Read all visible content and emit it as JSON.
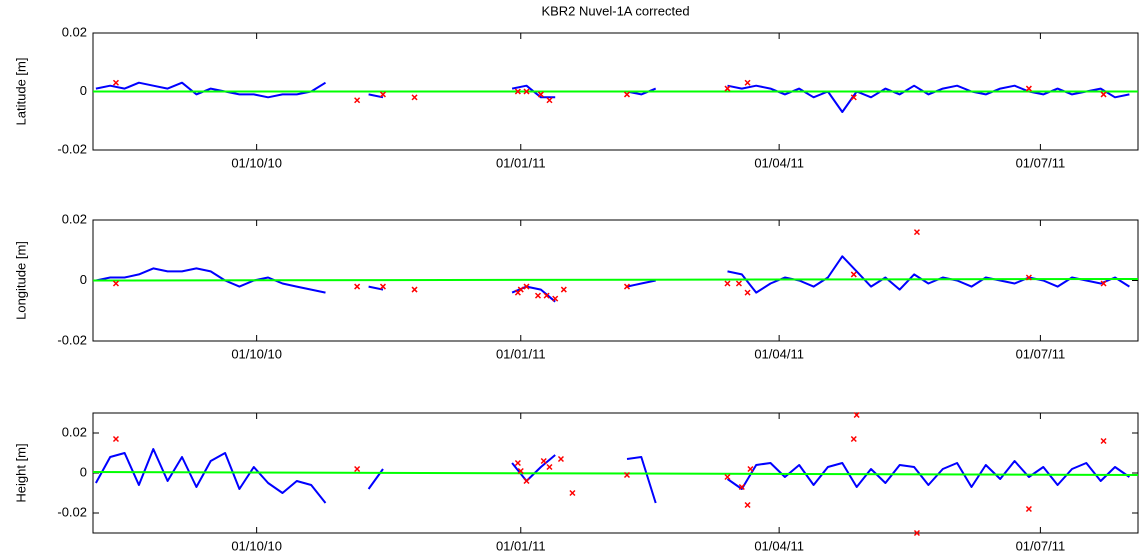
{
  "chart_data": [
    {
      "type": "line",
      "title": "KBR2 Nuvel-1A corrected",
      "ylabel": "Latitude [m]",
      "x": [
        "2010-08-06",
        "2010-08-11",
        "2010-08-16",
        "2010-08-21",
        "2010-08-26",
        "2010-08-31",
        "2010-09-05",
        "2010-09-10",
        "2010-09-15",
        "2010-09-20",
        "2010-09-25",
        "2010-09-30",
        "2010-10-05",
        "2010-10-10",
        "2010-10-15",
        "2010-10-20",
        "2010-10-25",
        "2010-10-30",
        "2010-11-04",
        "2010-11-09",
        "2010-11-14",
        "2010-11-19",
        "2010-11-24",
        "2010-11-29",
        "2010-12-04",
        "2010-12-09",
        "2010-12-14",
        "2010-12-19",
        "2010-12-24",
        "2010-12-29",
        "2011-01-03",
        "2011-01-08",
        "2011-01-13",
        "2011-01-18",
        "2011-01-23",
        "2011-01-28",
        "2011-02-02",
        "2011-02-07",
        "2011-02-12",
        "2011-02-17",
        "2011-02-22",
        "2011-02-27",
        "2011-03-04",
        "2011-03-09",
        "2011-03-14",
        "2011-03-19",
        "2011-03-24",
        "2011-03-29",
        "2011-04-03",
        "2011-04-08",
        "2011-04-13",
        "2011-04-18",
        "2011-04-23",
        "2011-04-28",
        "2011-05-03",
        "2011-05-08",
        "2011-05-13",
        "2011-05-18",
        "2011-05-23",
        "2011-05-28",
        "2011-06-02",
        "2011-06-07",
        "2011-06-12",
        "2011-06-17",
        "2011-06-22",
        "2011-06-27",
        "2011-07-02",
        "2011-07-07",
        "2011-07-12",
        "2011-07-17",
        "2011-07-22",
        "2011-07-27",
        "2011-08-01"
      ],
      "series": [
        {
          "color": "#0000ff",
          "values": [
            0.001,
            0.002,
            0.001,
            0.003,
            0.002,
            0.001,
            0.003,
            -0.001,
            0.001,
            0,
            -0.001,
            -0.001,
            -0.002,
            -0.001,
            -0.001,
            0,
            0.003,
            null,
            null,
            -0.001,
            -0.002,
            null,
            null,
            null,
            null,
            null,
            null,
            null,
            null,
            0.001,
            0.002,
            -0.002,
            -0.002,
            null,
            null,
            null,
            null,
            0,
            -0.001,
            0.001,
            null,
            null,
            null,
            null,
            0.002,
            0.001,
            0.002,
            0.001,
            -0.001,
            0.001,
            -0.002,
            0,
            -0.007,
            0,
            -0.002,
            0.001,
            -0.001,
            0.002,
            -0.001,
            0.001,
            0.002,
            0,
            -0.001,
            0.001,
            0.002,
            0,
            -0.001,
            0.001,
            -0.001,
            0,
            0.001,
            -0.002,
            -0.001
          ]
        },
        {
          "color": "#00ff00",
          "x": [
            "2010-08-05",
            "2011-08-04"
          ],
          "values": [
            0,
            0
          ]
        },
        {
          "color": "#ff0000",
          "type": "scatter",
          "x": [
            "2010-08-13",
            "2010-11-05",
            "2010-11-14",
            "2010-11-25",
            "2010-12-31",
            "2011-01-03",
            "2011-01-08",
            "2011-01-11",
            "2011-02-07",
            "2011-03-14",
            "2011-03-21",
            "2011-04-27",
            "2011-06-27",
            "2011-07-23"
          ],
          "values": [
            0.003,
            -0.003,
            -0.001,
            -0.002,
            0,
            0,
            -0.001,
            -0.003,
            -0.001,
            0.001,
            0.003,
            -0.002,
            0.001,
            -0.001
          ]
        }
      ],
      "xlim": [
        "2010-08-05",
        "2011-08-04"
      ],
      "xticks": [
        {
          "value": "2010-10-01",
          "label": "01/10/10"
        },
        {
          "value": "2011-01-01",
          "label": "01/01/11"
        },
        {
          "value": "2011-04-01",
          "label": "01/04/11"
        },
        {
          "value": "2011-07-01",
          "label": "01/07/11"
        }
      ],
      "ylim": [
        -0.02,
        0.02
      ],
      "yticks": [
        -0.02,
        0,
        0.02
      ]
    },
    {
      "type": "line",
      "ylabel": "Longitude [m]",
      "x": [
        "2010-08-06",
        "2010-08-11",
        "2010-08-16",
        "2010-08-21",
        "2010-08-26",
        "2010-08-31",
        "2010-09-05",
        "2010-09-10",
        "2010-09-15",
        "2010-09-20",
        "2010-09-25",
        "2010-09-30",
        "2010-10-05",
        "2010-10-10",
        "2010-10-15",
        "2010-10-20",
        "2010-10-25",
        "2010-10-30",
        "2010-11-04",
        "2010-11-09",
        "2010-11-14",
        "2010-11-19",
        "2010-11-24",
        "2010-11-29",
        "2010-12-04",
        "2010-12-09",
        "2010-12-14",
        "2010-12-19",
        "2010-12-24",
        "2010-12-29",
        "2011-01-03",
        "2011-01-08",
        "2011-01-13",
        "2011-01-18",
        "2011-01-23",
        "2011-01-28",
        "2011-02-02",
        "2011-02-07",
        "2011-02-12",
        "2011-02-17",
        "2011-02-22",
        "2011-02-27",
        "2011-03-04",
        "2011-03-09",
        "2011-03-14",
        "2011-03-19",
        "2011-03-24",
        "2011-03-29",
        "2011-04-03",
        "2011-04-08",
        "2011-04-13",
        "2011-04-18",
        "2011-04-23",
        "2011-04-28",
        "2011-05-03",
        "2011-05-08",
        "2011-05-13",
        "2011-05-18",
        "2011-05-23",
        "2011-05-28",
        "2011-06-02",
        "2011-06-07",
        "2011-06-12",
        "2011-06-17",
        "2011-06-22",
        "2011-06-27",
        "2011-07-02",
        "2011-07-07",
        "2011-07-12",
        "2011-07-17",
        "2011-07-22",
        "2011-07-27",
        "2011-08-01"
      ],
      "series": [
        {
          "color": "#0000ff",
          "values": [
            0,
            0.001,
            0.001,
            0.002,
            0.004,
            0.003,
            0.003,
            0.004,
            0.003,
            0,
            -0.002,
            0,
            0.001,
            -0.001,
            -0.002,
            -0.003,
            -0.004,
            null,
            null,
            -0.002,
            -0.003,
            null,
            null,
            null,
            null,
            null,
            null,
            null,
            null,
            -0.004,
            -0.002,
            -0.003,
            -0.007,
            null,
            null,
            null,
            null,
            -0.002,
            -0.001,
            0,
            null,
            null,
            null,
            null,
            0.003,
            0.002,
            -0.004,
            -0.001,
            0.001,
            0,
            -0.002,
            0.001,
            0.008,
            0.003,
            -0.002,
            0.001,
            -0.003,
            0.002,
            -0.001,
            0.001,
            0,
            -0.002,
            0.001,
            0,
            -0.001,
            0.001,
            0,
            -0.002,
            0.001,
            0,
            -0.001,
            0.001,
            -0.002
          ]
        },
        {
          "color": "#00ff00",
          "x": [
            "2010-08-05",
            "2011-08-04"
          ],
          "values": [
            0,
            0.0005
          ]
        },
        {
          "color": "#ff0000",
          "type": "scatter",
          "x": [
            "2010-08-13",
            "2010-11-05",
            "2010-11-14",
            "2010-11-25",
            "2010-12-31",
            "2011-01-01",
            "2011-01-03",
            "2011-01-07",
            "2011-01-10",
            "2011-01-13",
            "2011-01-16",
            "2011-02-07",
            "2011-03-14",
            "2011-03-18",
            "2011-03-21",
            "2011-04-27",
            "2011-05-19",
            "2011-06-27",
            "2011-07-23"
          ],
          "values": [
            -0.001,
            -0.002,
            -0.002,
            -0.003,
            -0.004,
            -0.003,
            -0.002,
            -0.005,
            -0.005,
            -0.006,
            -0.003,
            -0.002,
            -0.001,
            -0.001,
            -0.004,
            0.002,
            0.016,
            0.001,
            -0.001
          ]
        }
      ],
      "xlim": [
        "2010-08-05",
        "2011-08-04"
      ],
      "xticks": [
        {
          "value": "2010-10-01",
          "label": "01/10/10"
        },
        {
          "value": "2011-01-01",
          "label": "01/01/11"
        },
        {
          "value": "2011-04-01",
          "label": "01/04/11"
        },
        {
          "value": "2011-07-01",
          "label": "01/07/11"
        }
      ],
      "ylim": [
        -0.02,
        0.02
      ],
      "yticks": [
        -0.02,
        0,
        0.02
      ]
    },
    {
      "type": "line",
      "ylabel": "Height [m]",
      "x": [
        "2010-08-06",
        "2010-08-11",
        "2010-08-16",
        "2010-08-21",
        "2010-08-26",
        "2010-08-31",
        "2010-09-05",
        "2010-09-10",
        "2010-09-15",
        "2010-09-20",
        "2010-09-25",
        "2010-09-30",
        "2010-10-05",
        "2010-10-10",
        "2010-10-15",
        "2010-10-20",
        "2010-10-25",
        "2010-10-30",
        "2010-11-04",
        "2010-11-09",
        "2010-11-14",
        "2010-11-19",
        "2010-11-24",
        "2010-11-29",
        "2010-12-04",
        "2010-12-09",
        "2010-12-14",
        "2010-12-19",
        "2010-12-24",
        "2010-12-29",
        "2011-01-03",
        "2011-01-08",
        "2011-01-13",
        "2011-01-18",
        "2011-01-23",
        "2011-01-28",
        "2011-02-02",
        "2011-02-07",
        "2011-02-12",
        "2011-02-17",
        "2011-02-22",
        "2011-02-27",
        "2011-03-04",
        "2011-03-09",
        "2011-03-14",
        "2011-03-19",
        "2011-03-24",
        "2011-03-29",
        "2011-04-03",
        "2011-04-08",
        "2011-04-13",
        "2011-04-18",
        "2011-04-23",
        "2011-04-28",
        "2011-05-03",
        "2011-05-08",
        "2011-05-13",
        "2011-05-18",
        "2011-05-23",
        "2011-05-28",
        "2011-06-02",
        "2011-06-07",
        "2011-06-12",
        "2011-06-17",
        "2011-06-22",
        "2011-06-27",
        "2011-07-02",
        "2011-07-07",
        "2011-07-12",
        "2011-07-17",
        "2011-07-22",
        "2011-07-27",
        "2011-08-01"
      ],
      "series": [
        {
          "color": "#0000ff",
          "values": [
            -0.005,
            0.008,
            0.01,
            -0.006,
            0.012,
            -0.004,
            0.008,
            -0.007,
            0.006,
            0.01,
            -0.008,
            0.003,
            -0.005,
            -0.01,
            -0.004,
            -0.006,
            -0.015,
            null,
            null,
            -0.008,
            0.002,
            null,
            null,
            null,
            null,
            null,
            null,
            null,
            null,
            0.005,
            -0.004,
            0.003,
            0.009,
            null,
            null,
            null,
            null,
            0.007,
            0.008,
            -0.015,
            null,
            null,
            null,
            null,
            -0.003,
            -0.008,
            0.004,
            0.005,
            -0.002,
            0.004,
            -0.006,
            0.003,
            0.005,
            -0.007,
            0.002,
            -0.005,
            0.004,
            0.003,
            -0.006,
            0.002,
            0.005,
            -0.007,
            0.004,
            -0.003,
            0.006,
            -0.002,
            0.003,
            -0.006,
            0.002,
            0.005,
            -0.004,
            0.003,
            -0.002
          ]
        },
        {
          "color": "#00ff00",
          "x": [
            "2010-08-05",
            "2011-08-04"
          ],
          "values": [
            0.0005,
            -0.001
          ]
        },
        {
          "color": "#ff0000",
          "type": "scatter",
          "x": [
            "2010-08-13",
            "2010-11-05",
            "2010-12-31",
            "2011-01-01",
            "2011-01-03",
            "2011-01-09",
            "2011-01-11",
            "2011-01-15",
            "2011-01-19",
            "2011-02-07",
            "2011-03-14",
            "2011-03-19",
            "2011-03-21",
            "2011-03-22",
            "2011-04-27",
            "2011-04-28",
            "2011-05-19",
            "2011-06-27",
            "2011-07-23"
          ],
          "values": [
            0.017,
            0.002,
            0.005,
            0.001,
            -0.004,
            0.006,
            0.003,
            0.007,
            -0.01,
            -0.001,
            -0.002,
            -0.007,
            -0.016,
            0.002,
            0.017,
            0.029,
            -0.03,
            -0.018,
            0.016
          ]
        }
      ],
      "xlim": [
        "2010-08-05",
        "2011-08-04"
      ],
      "xticks": [
        {
          "value": "2010-10-01",
          "label": "01/10/10"
        },
        {
          "value": "2011-01-01",
          "label": "01/01/11"
        },
        {
          "value": "2011-04-01",
          "label": "01/04/11"
        },
        {
          "value": "2011-07-01",
          "label": "01/07/11"
        }
      ],
      "ylim": [
        -0.03,
        0.03
      ],
      "yticks": [
        -0.02,
        0,
        0.02
      ]
    }
  ]
}
